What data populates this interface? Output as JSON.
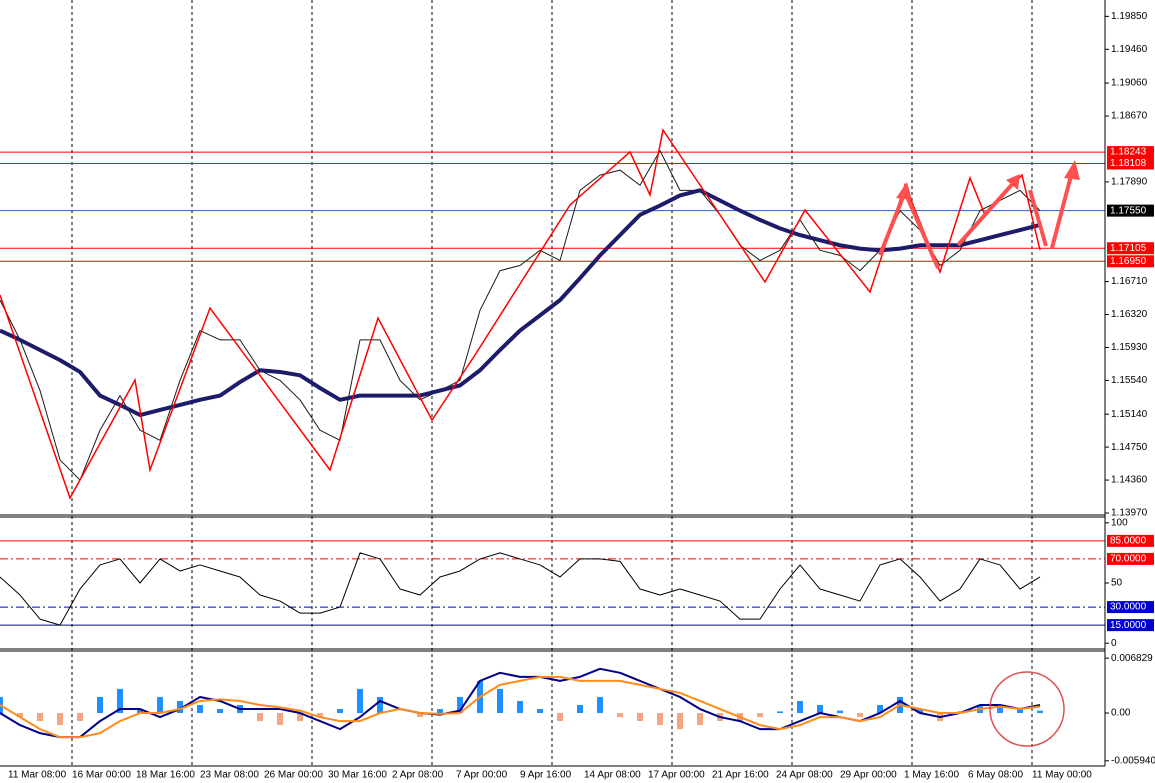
{
  "chart_data": [
    {
      "type": "line",
      "ylim": [
        1.1397,
        1.2002
      ],
      "yticks": [
        {
          "value": 1.1985,
          "label": "1.19850"
        },
        {
          "value": 1.1946,
          "label": "1.19460"
        },
        {
          "value": 1.1906,
          "label": "1.19060"
        },
        {
          "value": 1.1867,
          "label": "1.18670"
        },
        {
          "value": 1.1789,
          "label": "1.17890"
        },
        {
          "value": 1.1671,
          "label": "1.16710"
        },
        {
          "value": 1.1632,
          "label": "1.16320"
        },
        {
          "value": 1.1593,
          "label": "1.15930"
        },
        {
          "value": 1.1554,
          "label": "1.15540"
        },
        {
          "value": 1.1514,
          "label": "1.15140"
        },
        {
          "value": 1.1475,
          "label": "1.14750"
        },
        {
          "value": 1.1436,
          "label": "1.14360"
        },
        {
          "value": 1.1397,
          "label": "1.13970"
        }
      ],
      "series": [
        {
          "color": "#1a1a1a",
          "width": 1,
          "values": [
            1.1649,
            1.1602,
            1.1542,
            1.146,
            1.1436,
            1.1495,
            1.1536,
            1.1495,
            1.1483,
            1.1554,
            1.1613,
            1.1602,
            1.1602,
            1.1566,
            1.1554,
            1.1531,
            1.1495,
            1.1483,
            1.1602,
            1.1602,
            1.1554,
            1.1531,
            1.1542,
            1.1554,
            1.1637,
            1.1684,
            1.169,
            1.1708,
            1.1696,
            1.1779,
            1.1797,
            1.1803,
            1.1785,
            1.1826,
            1.1779,
            1.1779,
            1.175,
            1.1714,
            1.1696,
            1.1708,
            1.1744,
            1.1708,
            1.1702,
            1.1684,
            1.1708,
            1.1755,
            1.1732,
            1.169,
            1.1708,
            1.1755,
            1.1767,
            1.1779,
            1.1755
          ]
        },
        {
          "color": "#1c1c6b",
          "width": 4,
          "values": [
            1.1613,
            1.1602,
            1.159,
            1.1578,
            1.1564,
            1.1536,
            1.1525,
            1.1513,
            1.1519,
            1.1525,
            1.1531,
            1.1536,
            1.1552,
            1.1566,
            1.1564,
            1.156,
            1.1545,
            1.1531,
            1.1536,
            1.1536,
            1.1536,
            1.1536,
            1.1542,
            1.1548,
            1.1566,
            1.159,
            1.1613,
            1.1631,
            1.1649,
            1.1675,
            1.1702,
            1.1726,
            1.175,
            1.1761,
            1.1773,
            1.1779,
            1.1767,
            1.1755,
            1.1744,
            1.1734,
            1.1726,
            1.172,
            1.1714,
            1.171,
            1.1708,
            1.171,
            1.1714,
            1.1714,
            1.1714,
            1.172,
            1.1726,
            1.1732,
            1.1738
          ]
        }
      ],
      "levels": [
        {
          "value": 1.18243,
          "label": "1.18243",
          "color": "#ff0000"
        },
        {
          "value": 1.18108,
          "label": "1.18108",
          "color": "#ff0000"
        },
        {
          "value": 1.1755,
          "label": "1.17550",
          "color": "#3060c0",
          "tag_color": "#000000"
        },
        {
          "value": 1.17105,
          "label": "1.17105",
          "color": "#ff0000"
        },
        {
          "value": 1.1695,
          "label": "1.16950",
          "color": "#ff0000"
        }
      ],
      "x_labels": [
        "11 Mar 08:00",
        "16 Mar 00:00",
        "18 Mar 16:00",
        "23 Mar 08:00",
        "26 Mar 00:00",
        "30 Mar 16:00",
        "2 Apr 08:00",
        "7 Apr 00:00",
        "9 Apr 16:00",
        "14 Apr 08:00",
        "17 Apr 00:00",
        "21 Apr 16:00",
        "24 Apr 08:00",
        "29 Apr 00:00",
        "1 May 16:00",
        "6 May 08:00",
        "11 May 00:00"
      ]
    },
    {
      "type": "line",
      "ylim": [
        -4,
        104
      ],
      "yticks": [
        100,
        50,
        0
      ],
      "series": [
        {
          "color": "#000000",
          "width": 1,
          "values": [
            55,
            40,
            20,
            15,
            45,
            65,
            70,
            50,
            70,
            60,
            65,
            60,
            55,
            40,
            35,
            25,
            25,
            30,
            75,
            70,
            45,
            40,
            55,
            60,
            70,
            75,
            70,
            65,
            55,
            70,
            70,
            68,
            45,
            40,
            45,
            40,
            35,
            20,
            20,
            45,
            65,
            45,
            40,
            35,
            65,
            70,
            55,
            35,
            45,
            70,
            65,
            45,
            55
          ]
        }
      ],
      "levels": [
        {
          "value": 85,
          "label": "85.0000",
          "color": "#ff0000",
          "style": "solid"
        },
        {
          "value": 70,
          "label": "70.0000",
          "color": "#ff0000",
          "style": "dashdot"
        },
        {
          "value": 30,
          "label": "30.0000",
          "color": "#0000cc",
          "style": "dashdot"
        },
        {
          "value": 15,
          "label": "15.0000",
          "color": "#0000cc",
          "style": "solid"
        }
      ]
    },
    {
      "type": "line",
      "ylim": [
        -0.00646,
        0.00759
      ],
      "yticks": [
        0.006829,
        {
          "value": 0,
          "label": "0.00"
        },
        {
          "value": -0.00594,
          "label": "-0.005940"
        }
      ],
      "series": [
        {
          "type": "bar",
          "color": "#1e90ff",
          "negative_color": "#f4a582",
          "values": [
            0.002,
            -0.0005,
            -0.001,
            -0.0015,
            -0.001,
            0.002,
            0.003,
            0.0005,
            0.002,
            0.0015,
            0.001,
            0.0005,
            0.001,
            -0.001,
            -0.0015,
            -0.001,
            -0.0005,
            0.0005,
            0.003,
            0.002,
            0,
            -0.0005,
            0.0005,
            0.002,
            0.004,
            0.003,
            0.0015,
            0.0005,
            -0.001,
            0.001,
            0.002,
            -0.0005,
            -0.001,
            -0.0015,
            -0.002,
            -0.0015,
            -0.001,
            -0.001,
            -0.0005,
            0.0002,
            0.0015,
            0.001,
            0.0003,
            -0.0005,
            0.001,
            0.002,
            0.0005,
            -0.001,
            0.0002,
            0.001,
            0.001,
            0.0005,
            0.0003
          ]
        },
        {
          "color": "#00008b",
          "width": 2,
          "values": [
            0,
            -0.0015,
            -0.0025,
            -0.003,
            -0.003,
            -0.001,
            0.0005,
            0.0005,
            -0.0005,
            0.0005,
            0.002,
            0.0015,
            0.0005,
            0.0005,
            0.0005,
            0,
            -0.001,
            -0.002,
            -0.0005,
            0.0015,
            0.0005,
            0,
            -0.0002,
            0.0003,
            0.004,
            0.005,
            0.0045,
            0.0045,
            0.004,
            0.0045,
            0.0055,
            0.005,
            0.004,
            0.003,
            0.002,
            0.0005,
            -0.0005,
            -0.001,
            -0.002,
            -0.002,
            -0.001,
            0,
            -0.0005,
            -0.001,
            0,
            0.0015,
            0,
            -0.0005,
            0,
            0.001,
            0.001,
            0.0005,
            0.001
          ]
        },
        {
          "color": "#ff8c1a",
          "width": 2,
          "values": [
            0.001,
            -0.0005,
            -0.002,
            -0.003,
            -0.003,
            -0.0025,
            -0.001,
            0,
            0,
            0.0005,
            0.0015,
            0.0017,
            0.0015,
            0.001,
            0.0007,
            0.0003,
            -0.0005,
            -0.001,
            -0.001,
            0,
            0.0005,
            0,
            -0.0001,
            0,
            0.002,
            0.0035,
            0.004,
            0.0045,
            0.0045,
            0.004,
            0.004,
            0.004,
            0.0035,
            0.003,
            0.0025,
            0.0015,
            0.0005,
            -0.0005,
            -0.0015,
            -0.002,
            -0.0015,
            -0.0005,
            -0.0005,
            -0.001,
            -0.0005,
            0.001,
            0.0005,
            0,
            0,
            0.0005,
            0.0008,
            0.0005,
            0.0008
          ]
        }
      ]
    }
  ]
}
